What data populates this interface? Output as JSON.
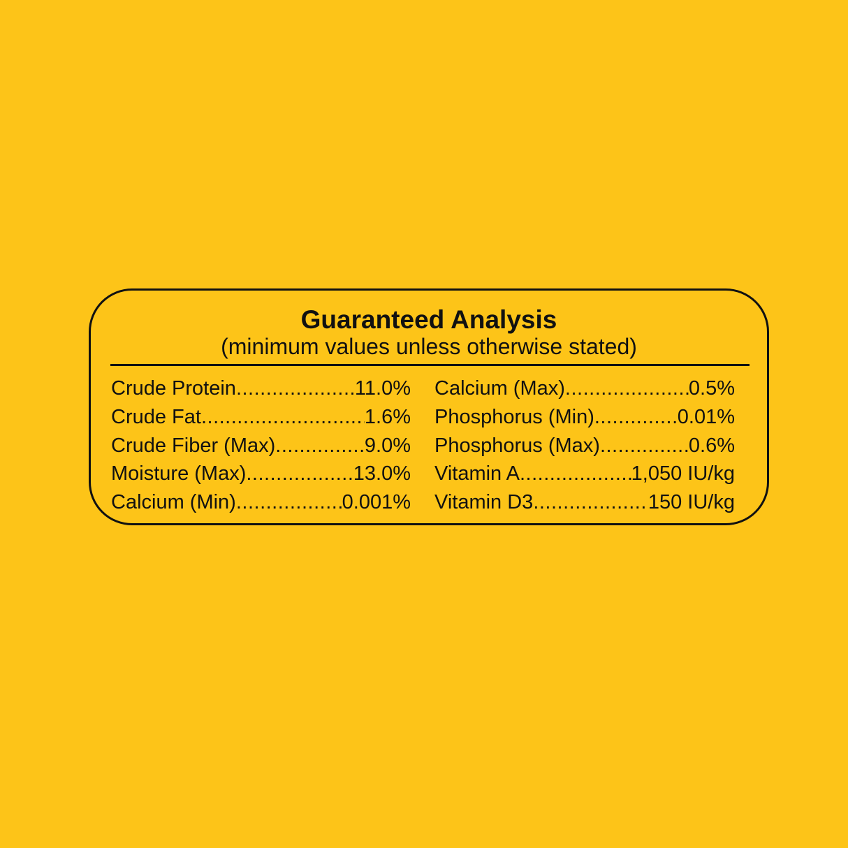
{
  "title": "Guaranteed Analysis",
  "subtitle": "(minimum values unless otherwise stated)",
  "colors": {
    "background": "#FDC418",
    "text": "#111111"
  },
  "left": [
    {
      "label": "Crude Protein ",
      "value": "11.0%"
    },
    {
      "label": "Crude Fat",
      "value": "1.6%"
    },
    {
      "label": "Crude Fiber (Max) ",
      "value": "9.0%"
    },
    {
      "label": "Moisture (Max)",
      "value": "13.0%"
    },
    {
      "label": "Calcium (Min) ",
      "value": "0.001%"
    }
  ],
  "right": [
    {
      "label": "Calcium (Max) ",
      "value": "0.5%"
    },
    {
      "label": "Phosphorus (Min) ",
      "value": "0.01%"
    },
    {
      "label": "Phosphorus (Max) ",
      "value": "0.6%"
    },
    {
      "label": "Vitamin A ",
      "value": "1,050 IU/kg"
    },
    {
      "label": "Vitamin D3",
      "value": "150 IU/kg"
    }
  ]
}
